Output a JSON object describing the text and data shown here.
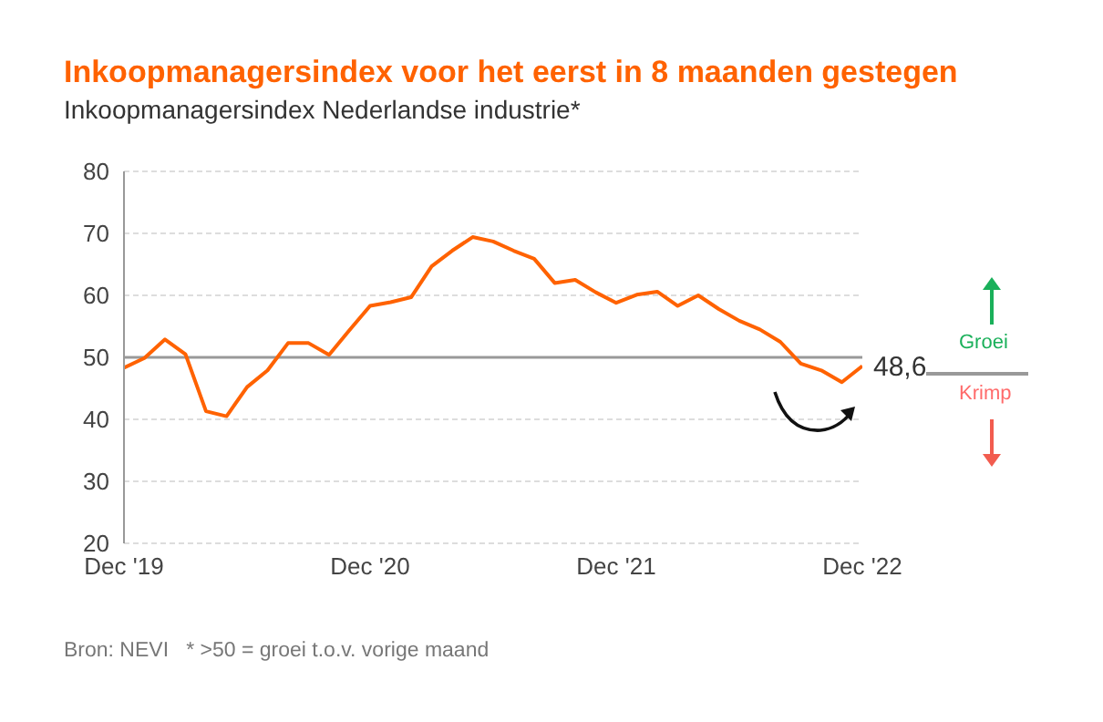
{
  "chart_data": {
    "type": "line",
    "title": "Inkoopmanagersindex voor het eerst in 8 maanden gestegen",
    "subtitle": "Inkoopmanagersindex Nederlandse industrie*",
    "categories": [
      "Dec '19",
      null,
      null,
      null,
      null,
      null,
      null,
      null,
      null,
      null,
      null,
      null,
      "Dec '20",
      null,
      null,
      null,
      null,
      null,
      null,
      null,
      null,
      null,
      null,
      null,
      "Dec '21",
      null,
      null,
      null,
      null,
      null,
      null,
      null,
      null,
      null,
      null,
      null,
      "Dec '22"
    ],
    "series": [
      {
        "color": "#ff6200",
        "values": [
          48.3,
          49.9,
          52.9,
          50.5,
          41.3,
          40.5,
          45.2,
          47.9,
          52.3,
          52.3,
          50.4,
          54.4,
          58.3,
          58.9,
          59.7,
          64.7,
          67.2,
          69.4,
          68.7,
          67.2,
          65.9,
          62.0,
          62.5,
          60.5,
          58.8,
          60.1,
          60.6,
          58.3,
          60.0,
          57.8,
          55.9,
          54.5,
          52.5,
          49.0,
          47.9,
          46.0,
          48.6
        ]
      }
    ],
    "ylim": [
      20,
      80
    ],
    "yticks": [
      20,
      30,
      40,
      50,
      60,
      70,
      80
    ],
    "grid": "y",
    "ref_lines": [
      {
        "axis": "y",
        "value": 50,
        "color": "#999999"
      }
    ],
    "annotations": [
      {
        "text": "48,6",
        "x": "Dec '22",
        "y": 48.6
      },
      "Groei",
      "Krimp",
      "Bron: NEVI",
      "* >50 = groei t.o.v. vorige maand"
    ]
  }
}
